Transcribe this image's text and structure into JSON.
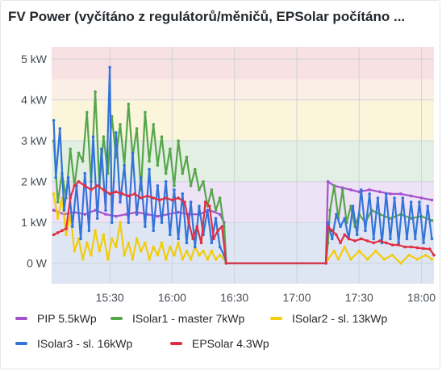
{
  "title": "FV Power (vyčítáno z regulátorů/měničů, EPSolar počítáno ...",
  "colors": {
    "pip": "#a352cc",
    "isolar1": "#56a64b",
    "isolar2": "#f2cc0c",
    "isolar3": "#3274d9",
    "epsolar": "#e02f44",
    "band_0_1": "#dee6f4",
    "band_1_2": "#eee3f6",
    "band_2_3": "#e3efe3",
    "band_3_4": "#fbf5dc",
    "band_4_45": "#fbeee4",
    "band_45_5": "#f8e1e2"
  },
  "legend": [
    {
      "label": "PIP 5.5kWp",
      "color": "#a352cc"
    },
    {
      "label": "ISolar1 - master 7kWp",
      "color": "#56a64b"
    },
    {
      "label": "ISolar2 - sl. 13kWp",
      "color": "#f2cc0c"
    },
    {
      "label": "ISolar3 - sl. 16kWp",
      "color": "#3274d9"
    },
    {
      "label": "EPSolar 4.3Wp",
      "color": "#e02f44"
    }
  ],
  "chart_data": {
    "type": "line",
    "title": "FV Power (vyčítáno z regulátorů/měničů, EPSolar počítáno ...",
    "xlabel": "",
    "ylabel": "",
    "x_unit": "time (HH:MM)",
    "xlim": [
      "15:02",
      "18:06"
    ],
    "ylim": [
      -0.5,
      5.3
    ],
    "y_ticks": [
      "0 W",
      "1 kW",
      "2 kW",
      "3 kW",
      "4 kW",
      "5 kW"
    ],
    "x_ticks": [
      "15:30",
      "16:00",
      "16:30",
      "17:00",
      "17:30",
      "18:00"
    ],
    "threshold_bands_kW": [
      {
        "from": 0,
        "to": 1,
        "color": "#dee6f4"
      },
      {
        "from": 1,
        "to": 2,
        "color": "#eee3f6"
      },
      {
        "from": 2,
        "to": 3,
        "color": "#e3efe3"
      },
      {
        "from": 3,
        "to": 4,
        "color": "#fbf5dc"
      },
      {
        "from": 4,
        "to": 4.5,
        "color": "#fbeee4"
      },
      {
        "from": 4.5,
        "to": 5.3,
        "color": "#f8e1e2"
      }
    ],
    "legend_position": "bottom",
    "series": [
      {
        "name": "PIP 5.5kWp",
        "color": "#a352cc",
        "points": [
          [
            "15:03",
            1.3
          ],
          [
            "15:08",
            1.2
          ],
          [
            "15:13",
            1.25
          ],
          [
            "15:18",
            1.2
          ],
          [
            "15:23",
            1.3
          ],
          [
            "15:28",
            1.2
          ],
          [
            "15:33",
            1.15
          ],
          [
            "15:38",
            1.2
          ],
          [
            "15:43",
            1.25
          ],
          [
            "15:48",
            1.2
          ],
          [
            "15:53",
            1.15
          ],
          [
            "15:58",
            1.2
          ],
          [
            "16:03",
            1.25
          ],
          [
            "16:08",
            1.2
          ],
          [
            "16:13",
            1.2
          ],
          [
            "16:18",
            1.3
          ],
          [
            "16:23",
            1.2
          ],
          [
            "16:25",
            1.0
          ],
          [
            "16:26",
            0.0
          ],
          [
            "17:14",
            0.0
          ],
          [
            "17:15",
            2.0
          ],
          [
            "17:18",
            1.9
          ],
          [
            "17:22",
            1.85
          ],
          [
            "17:26",
            1.8
          ],
          [
            "17:30",
            1.75
          ],
          [
            "17:35",
            1.8
          ],
          [
            "17:40",
            1.75
          ],
          [
            "17:45",
            1.7
          ],
          [
            "17:50",
            1.7
          ],
          [
            "17:55",
            1.65
          ],
          [
            "18:00",
            1.6
          ],
          [
            "18:05",
            1.55
          ]
        ]
      },
      {
        "name": "ISolar1 - master 7kWp",
        "color": "#56a64b",
        "points": [
          [
            "15:03",
            3.0
          ],
          [
            "15:05",
            1.5
          ],
          [
            "15:07",
            2.2
          ],
          [
            "15:09",
            1.6
          ],
          [
            "15:11",
            2.8
          ],
          [
            "15:13",
            1.9
          ],
          [
            "15:15",
            2.7
          ],
          [
            "15:17",
            2.5
          ],
          [
            "15:19",
            3.7
          ],
          [
            "15:21",
            2.0
          ],
          [
            "15:23",
            4.2
          ],
          [
            "15:25",
            1.9
          ],
          [
            "15:27",
            3.1
          ],
          [
            "15:29",
            2.2
          ],
          [
            "15:31",
            3.6
          ],
          [
            "15:33",
            2.6
          ],
          [
            "15:35",
            3.4
          ],
          [
            "15:37",
            2.4
          ],
          [
            "15:39",
            3.9
          ],
          [
            "15:41",
            2.6
          ],
          [
            "15:43",
            3.3
          ],
          [
            "15:45",
            1.8
          ],
          [
            "15:47",
            3.7
          ],
          [
            "15:49",
            2.5
          ],
          [
            "15:51",
            3.4
          ],
          [
            "15:53",
            2.4
          ],
          [
            "15:55",
            3.1
          ],
          [
            "15:57",
            2.2
          ],
          [
            "15:59",
            2.8
          ],
          [
            "16:01",
            1.9
          ],
          [
            "16:03",
            3.0
          ],
          [
            "16:05",
            2.2
          ],
          [
            "16:07",
            2.6
          ],
          [
            "16:09",
            1.9
          ],
          [
            "16:11",
            2.3
          ],
          [
            "16:13",
            1.8
          ],
          [
            "16:15",
            2.0
          ],
          [
            "16:17",
            1.4
          ],
          [
            "16:19",
            1.8
          ],
          [
            "16:21",
            1.3
          ],
          [
            "16:23",
            1.6
          ],
          [
            "16:25",
            0.9
          ],
          [
            "16:26",
            0.0
          ],
          [
            "17:14",
            0.0
          ],
          [
            "17:15",
            0.5
          ],
          [
            "17:16",
            1.3
          ],
          [
            "17:18",
            1.9
          ],
          [
            "17:20",
            1.1
          ],
          [
            "17:22",
            1.8
          ],
          [
            "17:24",
            1.0
          ],
          [
            "17:26",
            1.4
          ],
          [
            "17:28",
            0.9
          ],
          [
            "17:30",
            1.2
          ],
          [
            "17:33",
            1.0
          ],
          [
            "17:36",
            1.3
          ],
          [
            "17:40",
            1.2
          ],
          [
            "17:45",
            1.1
          ],
          [
            "17:50",
            1.2
          ],
          [
            "17:55",
            1.1
          ],
          [
            "18:00",
            1.15
          ],
          [
            "18:05",
            1.05
          ]
        ]
      },
      {
        "name": "ISolar2 - sl. 13kWp",
        "color": "#f2cc0c",
        "points": [
          [
            "15:03",
            1.7
          ],
          [
            "15:05",
            1.1
          ],
          [
            "15:07",
            1.6
          ],
          [
            "15:09",
            0.7
          ],
          [
            "15:11",
            1.2
          ],
          [
            "15:13",
            0.3
          ],
          [
            "15:15",
            0.6
          ],
          [
            "15:17",
            0.1
          ],
          [
            "15:19",
            0.5
          ],
          [
            "15:21",
            0.2
          ],
          [
            "15:23",
            0.8
          ],
          [
            "15:25",
            0.3
          ],
          [
            "15:27",
            0.7
          ],
          [
            "15:29",
            0.1
          ],
          [
            "15:31",
            0.6
          ],
          [
            "15:33",
            0.4
          ],
          [
            "15:35",
            1.0
          ],
          [
            "15:37",
            0.2
          ],
          [
            "15:39",
            0.5
          ],
          [
            "15:41",
            0.1
          ],
          [
            "15:43",
            0.6
          ],
          [
            "15:45",
            0.3
          ],
          [
            "15:47",
            0.5
          ],
          [
            "15:49",
            0.1
          ],
          [
            "15:51",
            0.4
          ],
          [
            "15:53",
            0.2
          ],
          [
            "15:55",
            0.5
          ],
          [
            "15:57",
            0.1
          ],
          [
            "15:59",
            0.4
          ],
          [
            "16:01",
            0.2
          ],
          [
            "16:03",
            0.5
          ],
          [
            "16:05",
            0.1
          ],
          [
            "16:07",
            0.3
          ],
          [
            "16:09",
            0.1
          ],
          [
            "16:11",
            0.4
          ],
          [
            "16:13",
            0.2
          ],
          [
            "16:15",
            0.3
          ],
          [
            "16:17",
            0.1
          ],
          [
            "16:19",
            0.3
          ],
          [
            "16:21",
            0.1
          ],
          [
            "16:23",
            0.2
          ],
          [
            "16:25",
            0.1
          ],
          [
            "16:26",
            0.0
          ],
          [
            "17:14",
            0.0
          ],
          [
            "17:15",
            0.1
          ],
          [
            "17:18",
            0.3
          ],
          [
            "17:20",
            0.1
          ],
          [
            "17:23",
            0.4
          ],
          [
            "17:26",
            0.1
          ],
          [
            "17:30",
            0.3
          ],
          [
            "17:34",
            0.1
          ],
          [
            "17:38",
            0.3
          ],
          [
            "17:42",
            0.1
          ],
          [
            "17:46",
            0.2
          ],
          [
            "17:50",
            0.0
          ],
          [
            "17:54",
            0.2
          ],
          [
            "17:58",
            0.1
          ],
          [
            "18:02",
            0.2
          ],
          [
            "18:05",
            0.1
          ]
        ]
      },
      {
        "name": "ISolar3 - sl. 16kWp",
        "color": "#3274d9",
        "points": [
          [
            "15:03",
            3.5
          ],
          [
            "15:04",
            2.1
          ],
          [
            "15:06",
            3.3
          ],
          [
            "15:08",
            1.3
          ],
          [
            "15:10",
            2.1
          ],
          [
            "15:12",
            0.9
          ],
          [
            "15:14",
            1.9
          ],
          [
            "15:16",
            0.6
          ],
          [
            "15:18",
            2.2
          ],
          [
            "15:20",
            0.8
          ],
          [
            "15:22",
            3.1
          ],
          [
            "15:24",
            1.1
          ],
          [
            "15:26",
            2.8
          ],
          [
            "15:28",
            1.3
          ],
          [
            "15:30",
            4.8
          ],
          [
            "15:31",
            1.0
          ],
          [
            "15:33",
            3.2
          ],
          [
            "15:35",
            1.5
          ],
          [
            "15:37",
            2.4
          ],
          [
            "15:39",
            1.0
          ],
          [
            "15:41",
            2.7
          ],
          [
            "15:43",
            1.2
          ],
          [
            "15:45",
            2.1
          ],
          [
            "15:47",
            0.9
          ],
          [
            "15:49",
            2.3
          ],
          [
            "15:51",
            0.8
          ],
          [
            "15:53",
            1.9
          ],
          [
            "15:55",
            1.0
          ],
          [
            "15:57",
            2.0
          ],
          [
            "15:59",
            0.7
          ],
          [
            "16:01",
            1.8
          ],
          [
            "16:03",
            0.6
          ],
          [
            "16:05",
            1.7
          ],
          [
            "16:07",
            0.5
          ],
          [
            "16:09",
            1.5
          ],
          [
            "16:11",
            0.4
          ],
          [
            "16:13",
            1.4
          ],
          [
            "16:15",
            0.7
          ],
          [
            "16:17",
            1.3
          ],
          [
            "16:19",
            0.5
          ],
          [
            "16:21",
            1.1
          ],
          [
            "16:23",
            0.4
          ],
          [
            "16:25",
            0.2
          ],
          [
            "16:26",
            0.0
          ],
          [
            "17:14",
            0.0
          ],
          [
            "17:15",
            1.0
          ],
          [
            "17:17",
            0.6
          ],
          [
            "17:19",
            1.2
          ],
          [
            "17:21",
            0.9
          ],
          [
            "17:23",
            1.1
          ],
          [
            "17:25",
            0.6
          ],
          [
            "17:27",
            1.4
          ],
          [
            "17:29",
            0.7
          ],
          [
            "17:31",
            1.8
          ],
          [
            "17:33",
            0.8
          ],
          [
            "17:35",
            1.7
          ],
          [
            "17:37",
            0.6
          ],
          [
            "17:39",
            1.6
          ],
          [
            "17:41",
            0.5
          ],
          [
            "17:43",
            1.7
          ],
          [
            "17:45",
            0.6
          ],
          [
            "17:47",
            1.6
          ],
          [
            "17:49",
            0.5
          ],
          [
            "17:51",
            1.6
          ],
          [
            "17:53",
            0.6
          ],
          [
            "17:55",
            1.5
          ],
          [
            "17:57",
            0.6
          ],
          [
            "17:59",
            1.5
          ],
          [
            "18:01",
            0.5
          ],
          [
            "18:03",
            1.4
          ],
          [
            "18:05",
            0.6
          ]
        ]
      },
      {
        "name": "EPSolar 4.3Wp",
        "color": "#e02f44",
        "points": [
          [
            "15:03",
            0.7
          ],
          [
            "15:05",
            0.75
          ],
          [
            "15:07",
            0.8
          ],
          [
            "15:09",
            0.85
          ],
          [
            "15:11",
            1.6
          ],
          [
            "15:13",
            1.9
          ],
          [
            "15:15",
            2.0
          ],
          [
            "15:18",
            1.9
          ],
          [
            "15:21",
            1.8
          ],
          [
            "15:24",
            1.9
          ],
          [
            "15:27",
            1.8
          ],
          [
            "15:30",
            1.7
          ],
          [
            "15:33",
            1.75
          ],
          [
            "15:36",
            1.7
          ],
          [
            "15:39",
            1.65
          ],
          [
            "15:42",
            1.7
          ],
          [
            "15:45",
            1.6
          ],
          [
            "15:48",
            1.65
          ],
          [
            "15:51",
            1.6
          ],
          [
            "15:54",
            1.55
          ],
          [
            "15:57",
            1.6
          ],
          [
            "16:00",
            1.55
          ],
          [
            "16:03",
            1.6
          ],
          [
            "16:06",
            1.5
          ],
          [
            "16:08",
            1.0
          ],
          [
            "16:10",
            0.6
          ],
          [
            "16:12",
            0.9
          ],
          [
            "16:14",
            0.5
          ],
          [
            "16:16",
            1.5
          ],
          [
            "16:18",
            1.4
          ],
          [
            "16:20",
            0.6
          ],
          [
            "16:22",
            0.8
          ],
          [
            "16:24",
            0.9
          ],
          [
            "16:26",
            0.0
          ],
          [
            "17:14",
            0.0
          ],
          [
            "17:15",
            0.9
          ],
          [
            "17:17",
            0.8
          ],
          [
            "17:19",
            0.7
          ],
          [
            "17:21",
            0.5
          ],
          [
            "17:23",
            0.7
          ],
          [
            "17:25",
            0.6
          ],
          [
            "17:28",
            0.55
          ],
          [
            "17:31",
            0.6
          ],
          [
            "17:34",
            0.55
          ],
          [
            "17:37",
            0.5
          ],
          [
            "17:40",
            0.55
          ],
          [
            "17:43",
            0.5
          ],
          [
            "17:46",
            0.45
          ],
          [
            "17:49",
            0.45
          ],
          [
            "17:52",
            0.4
          ],
          [
            "17:55",
            0.4
          ],
          [
            "17:58",
            0.38
          ],
          [
            "18:01",
            0.36
          ],
          [
            "18:04",
            0.35
          ],
          [
            "18:06",
            0.2
          ]
        ]
      }
    ]
  }
}
